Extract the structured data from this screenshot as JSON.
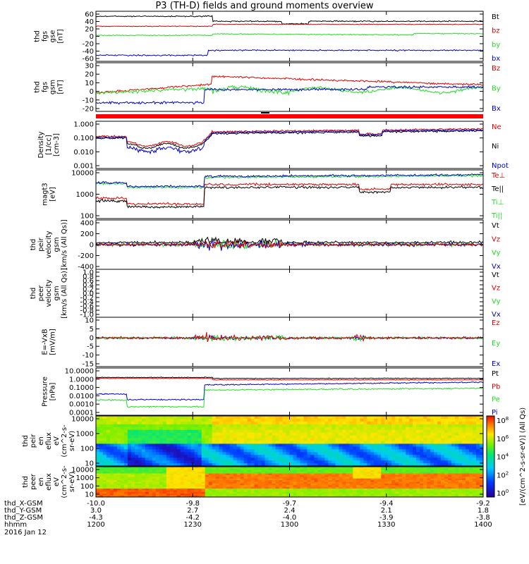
{
  "title": "P3 (TH-D) fields and ground moments overview",
  "colors": {
    "black": "#000000",
    "red": "#e00000",
    "green": "#22dd22",
    "blue": "#0000cc",
    "strip": "#ff0000"
  },
  "chart_data": [
    {
      "type": "line",
      "panel": "fgs",
      "ylabel": [
        "thd",
        "fgs",
        "gse",
        "[nT]"
      ],
      "yticks": [
        "60",
        "40",
        "20",
        "0",
        "-20",
        "-40",
        "-60"
      ],
      "ylim": [
        -60,
        65
      ],
      "legend": [
        {
          "name": "Bt",
          "color": "black"
        },
        {
          "name": "bz",
          "color": "red"
        },
        {
          "name": "by",
          "color": "green"
        },
        {
          "name": "bx",
          "color": "blue"
        }
      ]
    },
    {
      "type": "line",
      "panel": "fgs_gsm",
      "ylabel": [
        "thd",
        "fgs",
        "gsm",
        "[nT]"
      ],
      "yticks": [
        "30",
        "20",
        "10",
        "0",
        "-10",
        "-20"
      ],
      "ylim": [
        -25,
        30
      ],
      "legend": [
        {
          "name": "Bz",
          "color": "red"
        },
        {
          "name": "By",
          "color": "green"
        },
        {
          "name": "Bx",
          "color": "blue"
        }
      ]
    },
    {
      "type": "line",
      "panel": "density",
      "ylabel": [
        "Density",
        "[1/cc]",
        "[cm-3]"
      ],
      "yticks": [
        "1.000",
        "0.100",
        "0.010",
        "0.001"
      ],
      "log": true,
      "legend": [
        {
          "name": "Ne",
          "color": "red"
        },
        {
          "name": "Ni",
          "color": "black"
        },
        {
          "name": "Npot",
          "color": "blue"
        }
      ]
    },
    {
      "type": "line",
      "panel": "temperature",
      "ylabel": [
        "magt3",
        "[eV]"
      ],
      "yticks": [
        "10000",
        "1000",
        "100"
      ],
      "log": true,
      "legend": [
        {
          "name": "Te⊥",
          "color": "red"
        },
        {
          "name": "Te||",
          "color": "black"
        },
        {
          "name": "Ti⊥",
          "color": "green"
        },
        {
          "name": "Ti||",
          "color": "green"
        }
      ]
    },
    {
      "type": "line",
      "panel": "peir_velocity",
      "ylabel": [
        "thd",
        "peir",
        "velocity",
        "gsm",
        "[km/s (All Qs)]"
      ],
      "yticks": [
        "400",
        "200",
        "0",
        "-200",
        "-400"
      ],
      "ylim": [
        -400,
        400
      ],
      "legend": [
        {
          "name": "Vt",
          "color": "black"
        },
        {
          "name": "Vz",
          "color": "red"
        },
        {
          "name": "Vy",
          "color": "green"
        },
        {
          "name": "Vx",
          "color": "blue"
        }
      ]
    },
    {
      "type": "line",
      "panel": "peer_velocity",
      "ylabel": [
        "thd",
        "peer",
        "velocity",
        "gsm",
        "[km/s (All Qs)]"
      ],
      "yticks": [
        "1.0",
        "0.8",
        "0.6",
        "0.4",
        "0.2",
        "0.0",
        "-0.2",
        "-0.4",
        "-0.6",
        "-0.8",
        "-1.0"
      ],
      "ylim": [
        -1,
        1
      ],
      "legend": [
        {
          "name": "Vt",
          "color": "black"
        },
        {
          "name": "Vz",
          "color": "red"
        },
        {
          "name": "Vy",
          "color": "green"
        },
        {
          "name": "Vx",
          "color": "blue"
        }
      ]
    },
    {
      "type": "line",
      "panel": "efield",
      "ylabel": [
        "E=-VxB",
        "[mV/m]"
      ],
      "yticks": [
        "10",
        "5",
        "0",
        "-5",
        "-10",
        "-15"
      ],
      "ylim": [
        -15,
        12
      ],
      "legend": [
        {
          "name": "Ez",
          "color": "red"
        },
        {
          "name": "Ey",
          "color": "green"
        },
        {
          "name": "Ex",
          "color": "blue"
        }
      ]
    },
    {
      "type": "line",
      "panel": "pressure",
      "ylabel": [
        "Pressure",
        "[nPa]"
      ],
      "yticks": [
        "10.0000",
        "1.0000",
        "0.1000",
        "0.0100",
        "0.0010",
        "0.0001"
      ],
      "log": true,
      "legend": [
        {
          "name": "Pt",
          "color": "black"
        },
        {
          "name": "Pb",
          "color": "red"
        },
        {
          "name": "Pe",
          "color": "green"
        },
        {
          "name": "Pi",
          "color": "blue"
        }
      ]
    },
    {
      "type": "heatmap",
      "panel": "peir_spectrogram",
      "ylabel": [
        "thd",
        "peir",
        "en",
        "eflux",
        "eV",
        "(cm^2-s-",
        "sr-eV)"
      ],
      "yticks": [
        "10000",
        "1000",
        "100",
        "10"
      ]
    },
    {
      "type": "heatmap",
      "panel": "peer_spectrogram",
      "ylabel": [
        "thd",
        "peer",
        "en",
        "eflux",
        "eV",
        "(cm^2-s-",
        "sr-eV)"
      ],
      "yticks": [
        "10000",
        "1000",
        "100",
        "10"
      ]
    }
  ],
  "colorbar": {
    "label": "[eV/(cm^2-s-sr-eV)] (All Qs)",
    "ticks": [
      "10^8",
      "10^6",
      "10^4",
      "10^2",
      "10^0"
    ]
  },
  "xaxis": {
    "rows": [
      {
        "label": "thd_X-GSM",
        "values": [
          "-10.0",
          "-9.8",
          "-9.7",
          "-9.4",
          "-9.2"
        ]
      },
      {
        "label": "thd_Y-GSM",
        "values": [
          "3.0",
          "2.7",
          "2.4",
          "2.1",
          "1.8"
        ]
      },
      {
        "label": "thd_Z-GSM",
        "values": [
          "-4.3",
          "-4.2",
          "-4.0",
          "-3.9",
          "-3.8"
        ]
      },
      {
        "label": "hhmm",
        "values": [
          "1200",
          "1230",
          "1300",
          "1330",
          "1400"
        ]
      }
    ],
    "date": "2016 Jan 12"
  }
}
